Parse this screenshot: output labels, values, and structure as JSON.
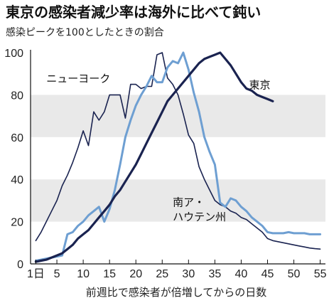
{
  "chart_data": {
    "type": "line",
    "title": "東京の感染者減少率は海外に比べて鈍い",
    "subtitle": "感染ピークを100としたときの割合",
    "xlabel": "前週比で感染者が倍増してからの日数",
    "xlim": [
      0,
      56
    ],
    "ylim": [
      0,
      100
    ],
    "x_tick_labels": [
      {
        "x": 1,
        "label": "1日"
      },
      {
        "x": 5,
        "label": "5"
      },
      {
        "x": 10,
        "label": "10"
      },
      {
        "x": 15,
        "label": "15"
      },
      {
        "x": 20,
        "label": "20"
      },
      {
        "x": 25,
        "label": "25"
      },
      {
        "x": 30,
        "label": "30"
      },
      {
        "x": 35,
        "label": "35"
      },
      {
        "x": 40,
        "label": "40"
      },
      {
        "x": 45,
        "label": "45"
      },
      {
        "x": 50,
        "label": "50"
      },
      {
        "x": 55,
        "label": "55"
      }
    ],
    "y_ticks": [
      0,
      20,
      40,
      60,
      80,
      100
    ],
    "background_bands": [
      [
        20,
        40
      ],
      [
        60,
        80
      ]
    ],
    "band_color": "#e9e9e9",
    "series": [
      {
        "name": "ニューヨーク",
        "color": "#1a2350",
        "stroke_width": 1.6,
        "points": [
          [
            1,
            11
          ],
          [
            2,
            15
          ],
          [
            3,
            20
          ],
          [
            4,
            25
          ],
          [
            5,
            30
          ],
          [
            6,
            37
          ],
          [
            7,
            42
          ],
          [
            8,
            48
          ],
          [
            9,
            55
          ],
          [
            10,
            63
          ],
          [
            11,
            56
          ],
          [
            12,
            72
          ],
          [
            13,
            68
          ],
          [
            14,
            72
          ],
          [
            15,
            80
          ],
          [
            16,
            80
          ],
          [
            17,
            80
          ],
          [
            18,
            69
          ],
          [
            19,
            85
          ],
          [
            20,
            85
          ],
          [
            21,
            83
          ],
          [
            22,
            84
          ],
          [
            23,
            84
          ],
          [
            24,
            99
          ],
          [
            25,
            100
          ],
          [
            26,
            88
          ],
          [
            27,
            85
          ],
          [
            28,
            80
          ],
          [
            29,
            71
          ],
          [
            30,
            61
          ],
          [
            31,
            57
          ],
          [
            32,
            46
          ],
          [
            33,
            40
          ],
          [
            34,
            35
          ],
          [
            35,
            30
          ],
          [
            36,
            28
          ],
          [
            37,
            27
          ],
          [
            38,
            25
          ],
          [
            39,
            24
          ],
          [
            40,
            22
          ],
          [
            41,
            21
          ],
          [
            42,
            19
          ],
          [
            43,
            17
          ],
          [
            44,
            15
          ],
          [
            45,
            12
          ],
          [
            46,
            11
          ],
          [
            47,
            10.5
          ],
          [
            48,
            10
          ],
          [
            49,
            9.5
          ],
          [
            50,
            9
          ],
          [
            51,
            8.5
          ],
          [
            52,
            8
          ],
          [
            53,
            7.5
          ],
          [
            54,
            7.2
          ],
          [
            55,
            7
          ]
        ]
      },
      {
        "name": "南ア・ハウテン州",
        "color": "#6e9fd2",
        "stroke_width": 3,
        "points": [
          [
            1,
            1.5
          ],
          [
            2,
            2
          ],
          [
            3,
            2.5
          ],
          [
            4,
            3
          ],
          [
            5,
            3.5
          ],
          [
            6,
            4
          ],
          [
            7,
            14
          ],
          [
            8,
            15
          ],
          [
            9,
            18
          ],
          [
            10,
            20
          ],
          [
            11,
            23
          ],
          [
            12,
            25
          ],
          [
            13,
            27
          ],
          [
            14,
            20
          ],
          [
            15,
            26
          ],
          [
            16,
            35
          ],
          [
            17,
            47
          ],
          [
            18,
            60
          ],
          [
            19,
            68
          ],
          [
            20,
            75
          ],
          [
            21,
            80
          ],
          [
            22,
            84
          ],
          [
            23,
            89
          ],
          [
            24,
            86
          ],
          [
            25,
            86
          ],
          [
            26,
            93
          ],
          [
            27,
            96
          ],
          [
            28,
            95
          ],
          [
            29,
            100
          ],
          [
            30,
            92
          ],
          [
            31,
            81
          ],
          [
            32,
            72
          ],
          [
            33,
            60
          ],
          [
            34,
            53
          ],
          [
            35,
            47
          ],
          [
            36,
            29
          ],
          [
            37,
            27
          ],
          [
            38,
            31
          ],
          [
            39,
            30
          ],
          [
            40,
            27
          ],
          [
            41,
            25
          ],
          [
            42,
            22
          ],
          [
            43,
            20
          ],
          [
            44,
            18
          ],
          [
            45,
            15
          ],
          [
            46,
            14.5
          ],
          [
            47,
            14.5
          ],
          [
            48,
            14.5
          ],
          [
            49,
            15
          ],
          [
            50,
            14.5
          ],
          [
            51,
            14.5
          ],
          [
            52,
            14.5
          ],
          [
            53,
            14
          ],
          [
            54,
            14
          ],
          [
            55,
            14
          ]
        ]
      },
      {
        "name": "東京",
        "color": "#1a2350",
        "stroke_width": 3.2,
        "points": [
          [
            1,
            1
          ],
          [
            2,
            1.5
          ],
          [
            3,
            2
          ],
          [
            4,
            3
          ],
          [
            5,
            4
          ],
          [
            6,
            5
          ],
          [
            7,
            7
          ],
          [
            8,
            9
          ],
          [
            9,
            12
          ],
          [
            10,
            14
          ],
          [
            11,
            16
          ],
          [
            12,
            19
          ],
          [
            13,
            22
          ],
          [
            14,
            25
          ],
          [
            15,
            28
          ],
          [
            16,
            32
          ],
          [
            17,
            35
          ],
          [
            18,
            39
          ],
          [
            19,
            43
          ],
          [
            20,
            47
          ],
          [
            21,
            52
          ],
          [
            22,
            57
          ],
          [
            23,
            62
          ],
          [
            24,
            67
          ],
          [
            25,
            72
          ],
          [
            26,
            77
          ],
          [
            27,
            80
          ],
          [
            28,
            83
          ],
          [
            29,
            86
          ],
          [
            30,
            89
          ],
          [
            31,
            92
          ],
          [
            32,
            95
          ],
          [
            33,
            97
          ],
          [
            34,
            98
          ],
          [
            35,
            99
          ],
          [
            36,
            100
          ],
          [
            37,
            97
          ],
          [
            38,
            94
          ],
          [
            39,
            90
          ],
          [
            40,
            86
          ],
          [
            41,
            83
          ],
          [
            42,
            82
          ],
          [
            43,
            80
          ],
          [
            44,
            79
          ],
          [
            45,
            78
          ],
          [
            46,
            77
          ]
        ]
      }
    ],
    "series_labels": [
      {
        "text": "ニューヨーク",
        "series": 0
      },
      {
        "text": "東京",
        "series": 2
      },
      {
        "text": "南ア・",
        "series": 1
      },
      {
        "text": "ハウテン州",
        "series": 1
      }
    ]
  }
}
